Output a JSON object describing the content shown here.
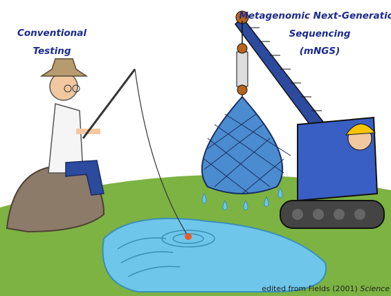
{
  "labels": {
    "left": [
      "Conventional",
      "Testing"
    ],
    "right": [
      "Metagenomic Next-Generation",
      "Sequencing",
      "(mNGS)"
    ]
  },
  "credit": {
    "text": "edited from Fields (2001)",
    "journal": "Science"
  }
}
